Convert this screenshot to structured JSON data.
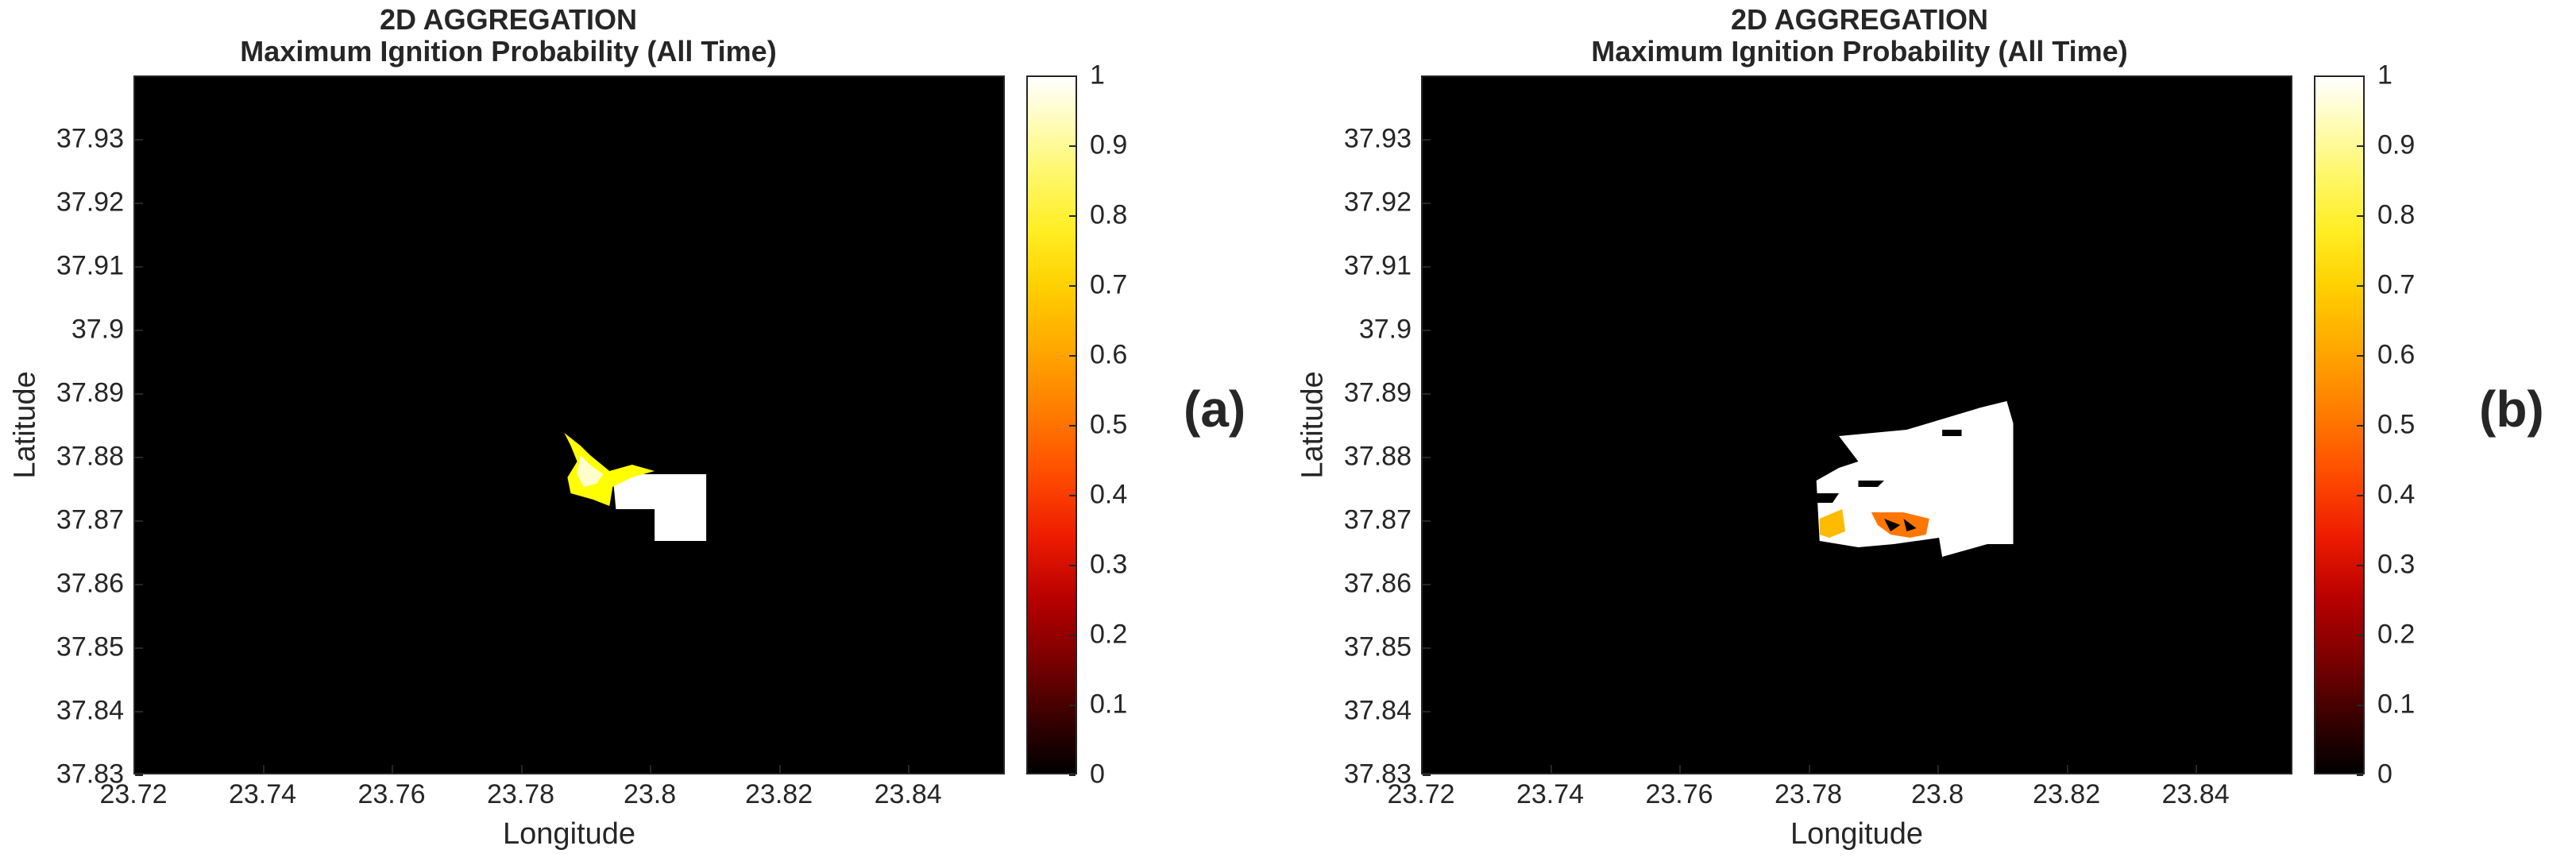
{
  "chart_data": [
    {
      "type": "heatmap",
      "panel_label": "(a)",
      "title": "2D AGGREGATION",
      "subtitle": "Maximum Ignition Probability (All Time)",
      "xlabel": "Longitude",
      "ylabel": "Latitude",
      "xlim": [
        23.72,
        23.855
      ],
      "ylim": [
        37.83,
        37.94
      ],
      "xticks": [
        "23.72",
        "23.74",
        "23.76",
        "23.78",
        "23.8",
        "23.82",
        "23.84"
      ],
      "yticks": [
        "37.83",
        "37.84",
        "37.85",
        "37.86",
        "37.87",
        "37.88",
        "37.89",
        "37.9",
        "37.91",
        "37.92",
        "37.93"
      ],
      "colorbar": {
        "min": 0,
        "max": 1,
        "colormap": "hot",
        "ticks": [
          "0",
          "0.1",
          "0.2",
          "0.3",
          "0.4",
          "0.5",
          "0.6",
          "0.7",
          "0.8",
          "0.9",
          "1"
        ]
      },
      "background_value": 0,
      "regions": [
        {
          "value": 1.0,
          "polygon": [
            [
              23.794,
              37.8775
            ],
            [
              23.8085,
              37.8775
            ],
            [
              23.8085,
              37.867
            ],
            [
              23.8005,
              37.867
            ],
            [
              23.8005,
              37.872
            ],
            [
              23.7945,
              37.872
            ]
          ]
        },
        {
          "value": 0.75,
          "polygon": [
            [
              23.7865,
              37.884
            ],
            [
              23.789,
              37.882
            ],
            [
              23.7905,
              37.8805
            ],
            [
              23.7935,
              37.878
            ],
            [
              23.797,
              37.879
            ],
            [
              23.8005,
              37.878
            ],
            [
              23.797,
              37.877
            ],
            [
              23.794,
              37.8755
            ],
            [
              23.7935,
              37.8725
            ],
            [
              23.791,
              37.8735
            ],
            [
              23.7875,
              37.8745
            ],
            [
              23.787,
              37.877
            ],
            [
              23.7885,
              37.8795
            ],
            [
              23.7875,
              37.882
            ]
          ]
        },
        {
          "value": 0.95,
          "polygon": [
            [
              23.789,
              37.8805
            ],
            [
              23.7905,
              37.879
            ],
            [
              23.7925,
              37.8775
            ],
            [
              23.7915,
              37.876
            ],
            [
              23.7895,
              37.8755
            ],
            [
              23.7885,
              37.8775
            ]
          ]
        }
      ]
    },
    {
      "type": "heatmap",
      "panel_label": "(b)",
      "title": "2D AGGREGATION",
      "subtitle": "Maximum Ignition Probability (All Time)",
      "xlabel": "Longitude",
      "ylabel": "Latitude",
      "xlim": [
        23.72,
        23.855
      ],
      "ylim": [
        37.83,
        37.94
      ],
      "xticks": [
        "23.72",
        "23.74",
        "23.76",
        "23.78",
        "23.8",
        "23.82",
        "23.84"
      ],
      "yticks": [
        "37.83",
        "37.84",
        "37.85",
        "37.86",
        "37.87",
        "37.88",
        "37.89",
        "37.9",
        "37.91",
        "37.92",
        "37.93"
      ],
      "colorbar": {
        "min": 0,
        "max": 1,
        "colormap": "hot",
        "ticks": [
          "0",
          "0.1",
          "0.2",
          "0.3",
          "0.4",
          "0.5",
          "0.6",
          "0.7",
          "0.8",
          "0.9",
          "1"
        ]
      },
      "background_value": 0,
      "regions": [
        {
          "value": 1.0,
          "polygon": [
            [
              23.7845,
              37.8835
            ],
            [
              23.795,
              37.8845
            ],
            [
              23.8065,
              37.888
            ],
            [
              23.8105,
              37.889
            ],
            [
              23.8115,
              37.8855
            ],
            [
              23.8115,
              37.8665
            ],
            [
              23.8075,
              37.8665
            ],
            [
              23.8005,
              37.8645
            ],
            [
              23.8,
              37.8675
            ],
            [
              23.793,
              37.8665
            ],
            [
              23.7875,
              37.866
            ],
            [
              23.7815,
              37.867
            ],
            [
              23.781,
              37.8765
            ],
            [
              23.7845,
              37.8785
            ],
            [
              23.7875,
              37.8795
            ]
          ]
        },
        {
          "value": 0.0,
          "polygon": [
            [
              23.7805,
              37.8745
            ],
            [
              23.7845,
              37.8745
            ],
            [
              23.7835,
              37.873
            ],
            [
              23.7805,
              37.873
            ]
          ]
        },
        {
          "value": 0.0,
          "polygon": [
            [
              23.7875,
              37.8765
            ],
            [
              23.7915,
              37.8765
            ],
            [
              23.7905,
              37.8755
            ],
            [
              23.7875,
              37.8755
            ]
          ]
        },
        {
          "value": 0.65,
          "polygon": [
            [
              23.7815,
              37.8705
            ],
            [
              23.785,
              37.872
            ],
            [
              23.7855,
              37.8685
            ],
            [
              23.783,
              37.8675
            ],
            [
              23.7815,
              37.868
            ]
          ]
        },
        {
          "value": 0.55,
          "polygon": [
            [
              23.7895,
              37.8715
            ],
            [
              23.7945,
              37.8715
            ],
            [
              23.7985,
              37.8705
            ],
            [
              23.798,
              37.868
            ],
            [
              23.7955,
              37.8675
            ],
            [
              23.7925,
              37.868
            ],
            [
              23.7905,
              37.8695
            ]
          ]
        },
        {
          "value": 0.0,
          "polygon": [
            [
              23.7915,
              37.8705
            ],
            [
              23.794,
              37.8695
            ],
            [
              23.7925,
              37.8685
            ]
          ]
        },
        {
          "value": 0.0,
          "polygon": [
            [
              23.7945,
              37.8705
            ],
            [
              23.7965,
              37.869
            ],
            [
              23.795,
              37.8685
            ]
          ]
        },
        {
          "value": 0.0,
          "polygon": [
            [
              23.8005,
              37.8845
            ],
            [
              23.8035,
              37.8845
            ],
            [
              23.8035,
              37.8835
            ],
            [
              23.8005,
              37.8835
            ]
          ]
        }
      ]
    }
  ]
}
